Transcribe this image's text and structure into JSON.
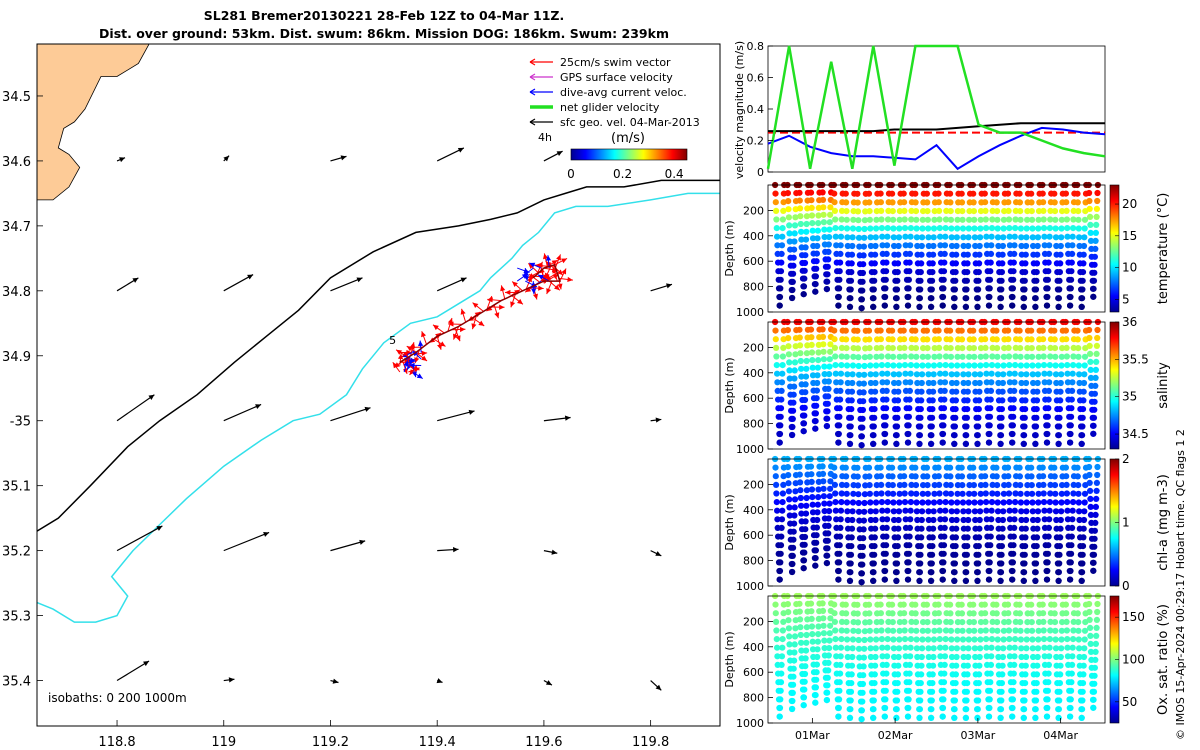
{
  "title_line1": "SL281 Bremer20130221 28-Feb 12Z to 04-Mar 11Z.",
  "title_line2": "Dist. over ground: 53km. Dist. swum: 86km. Mission DOG: 186km. Swum: 239km",
  "copyright": "© IMOS 15-Apr-2024 00:29:17 Hobart time. QC flags 1  2",
  "colors": {
    "land": "#fdcb97",
    "isobath_200": "#000000",
    "isobath_1000": "#33e0ea",
    "swim": "#ff0000",
    "gps": "#cc33cc",
    "current": "#0000ff",
    "net": "#22e022",
    "geo": "#000000"
  },
  "chart_data": [
    {
      "type": "map",
      "name": "track-map",
      "xlim": [
        118.65,
        119.93
      ],
      "ylim": [
        -35.47,
        -34.42
      ],
      "x_ticks": [
        118.8,
        119,
        119.2,
        119.4,
        119.6,
        119.8
      ],
      "x_tick_labels": [
        "118.8",
        "119",
        "119.2",
        "119.4",
        "119.6",
        "119.8"
      ],
      "y_ticks": [
        -34.5,
        -34.6,
        -34.7,
        -34.8,
        -34.9,
        -35,
        -35.1,
        -35.2,
        -35.3,
        -35.4
      ],
      "y_tick_labels": [
        "34.5",
        "34.6",
        "34.7",
        "34.8",
        "34.9",
        "-35",
        "35.1",
        "35.2",
        "35.3",
        "35.4"
      ],
      "legend": [
        {
          "label": "25cm/s swim vector",
          "color": "#ff0000"
        },
        {
          "label": "GPS surface velocity",
          "color": "#cc33cc"
        },
        {
          "label": "dive-avg current veloc.",
          "color": "#0000ff"
        },
        {
          "label": "net glider velocity",
          "color": "#22e022"
        },
        {
          "label": "sfc geo. vel. 04-Mar-2013",
          "color": "#000000"
        }
      ],
      "legend_note": "4h",
      "colorbar_label": "(m/s)",
      "colorbar_ticks": [
        0,
        0.2,
        0.4
      ],
      "colorbar_tick_labels": [
        "0",
        "0.2",
        "0.4"
      ],
      "colorbar_range": [
        0,
        0.45
      ],
      "isobaths_label": "isobaths: 0   200  1000m",
      "track_label": "5",
      "coastline": [
        [
          118.65,
          -34.42
        ],
        [
          118.86,
          -34.42
        ],
        [
          118.84,
          -34.45
        ],
        [
          118.8,
          -34.47
        ],
        [
          118.77,
          -34.47
        ],
        [
          118.74,
          -34.52
        ],
        [
          118.72,
          -34.54
        ],
        [
          118.7,
          -34.55
        ],
        [
          118.69,
          -34.58
        ],
        [
          118.71,
          -34.59
        ],
        [
          118.73,
          -34.61
        ],
        [
          118.71,
          -34.64
        ],
        [
          118.68,
          -34.66
        ],
        [
          118.65,
          -34.66
        ]
      ],
      "isobath_200": [
        [
          118.65,
          -35.17
        ],
        [
          118.69,
          -35.15
        ],
        [
          118.75,
          -35.1
        ],
        [
          118.82,
          -35.04
        ],
        [
          118.88,
          -35.0
        ],
        [
          118.95,
          -34.96
        ],
        [
          119.02,
          -34.91
        ],
        [
          119.08,
          -34.87
        ],
        [
          119.14,
          -34.83
        ],
        [
          119.2,
          -34.78
        ],
        [
          119.28,
          -34.74
        ],
        [
          119.36,
          -34.71
        ],
        [
          119.44,
          -34.7
        ],
        [
          119.5,
          -34.69
        ],
        [
          119.55,
          -34.68
        ],
        [
          119.6,
          -34.66
        ],
        [
          119.64,
          -34.65
        ],
        [
          119.68,
          -34.64
        ],
        [
          119.75,
          -34.64
        ],
        [
          119.82,
          -34.63
        ],
        [
          119.89,
          -34.63
        ],
        [
          119.93,
          -34.63
        ]
      ],
      "isobath_1000": [
        [
          118.65,
          -35.28
        ],
        [
          118.68,
          -35.29
        ],
        [
          118.72,
          -35.31
        ],
        [
          118.76,
          -35.31
        ],
        [
          118.8,
          -35.3
        ],
        [
          118.82,
          -35.27
        ],
        [
          118.79,
          -35.24
        ],
        [
          118.83,
          -35.2
        ],
        [
          118.88,
          -35.16
        ],
        [
          118.93,
          -35.12
        ],
        [
          119.0,
          -35.07
        ],
        [
          119.07,
          -35.03
        ],
        [
          119.13,
          -35.0
        ],
        [
          119.18,
          -34.99
        ],
        [
          119.23,
          -34.96
        ],
        [
          119.26,
          -34.92
        ],
        [
          119.3,
          -34.88
        ],
        [
          119.35,
          -34.85
        ],
        [
          119.4,
          -34.84
        ],
        [
          119.44,
          -34.82
        ],
        [
          119.48,
          -34.8
        ],
        [
          119.5,
          -34.78
        ],
        [
          119.54,
          -34.75
        ],
        [
          119.56,
          -34.73
        ],
        [
          119.59,
          -34.71
        ],
        [
          119.62,
          -34.68
        ],
        [
          119.66,
          -34.67
        ],
        [
          119.72,
          -34.67
        ],
        [
          119.8,
          -34.66
        ],
        [
          119.87,
          -34.65
        ],
        [
          119.93,
          -34.65
        ]
      ],
      "geo_vectors": [
        {
          "lon": 118.8,
          "lat": -34.6,
          "u": 0.015,
          "v": 0.005
        },
        {
          "lon": 119.0,
          "lat": -34.6,
          "u": 0.01,
          "v": 0.008
        },
        {
          "lon": 119.2,
          "lat": -34.6,
          "u": 0.03,
          "v": 0.007
        },
        {
          "lon": 119.4,
          "lat": -34.6,
          "u": 0.05,
          "v": 0.02
        },
        {
          "lon": 119.6,
          "lat": -34.6,
          "u": 0.035,
          "v": 0.015
        },
        {
          "lon": 118.8,
          "lat": -34.8,
          "u": 0.04,
          "v": 0.02
        },
        {
          "lon": 119.0,
          "lat": -34.8,
          "u": 0.055,
          "v": 0.025
        },
        {
          "lon": 119.2,
          "lat": -34.8,
          "u": 0.06,
          "v": 0.02
        },
        {
          "lon": 119.4,
          "lat": -34.8,
          "u": 0.055,
          "v": 0.02
        },
        {
          "lon": 119.8,
          "lat": -34.8,
          "u": 0.04,
          "v": 0.01
        },
        {
          "lon": 118.8,
          "lat": -35.0,
          "u": 0.07,
          "v": 0.04
        },
        {
          "lon": 119.0,
          "lat": -35.0,
          "u": 0.07,
          "v": 0.025
        },
        {
          "lon": 119.2,
          "lat": -35.0,
          "u": 0.075,
          "v": 0.02
        },
        {
          "lon": 119.4,
          "lat": -35.0,
          "u": 0.07,
          "v": 0.015
        },
        {
          "lon": 119.6,
          "lat": -35.0,
          "u": 0.05,
          "v": 0.005
        },
        {
          "lon": 119.8,
          "lat": -35.0,
          "u": 0.02,
          "v": 0.002
        },
        {
          "lon": 118.8,
          "lat": -35.2,
          "u": 0.085,
          "v": 0.038
        },
        {
          "lon": 119.0,
          "lat": -35.2,
          "u": 0.085,
          "v": 0.028
        },
        {
          "lon": 119.2,
          "lat": -35.2,
          "u": 0.065,
          "v": 0.015
        },
        {
          "lon": 119.4,
          "lat": -35.2,
          "u": 0.04,
          "v": 0.002
        },
        {
          "lon": 119.6,
          "lat": -35.2,
          "u": 0.025,
          "v": -0.004
        },
        {
          "lon": 119.8,
          "lat": -35.2,
          "u": 0.02,
          "v": -0.008
        },
        {
          "lon": 118.8,
          "lat": -35.4,
          "u": 0.06,
          "v": 0.03
        },
        {
          "lon": 119.0,
          "lat": -35.4,
          "u": 0.02,
          "v": 0.002
        },
        {
          "lon": 119.2,
          "lat": -35.4,
          "u": 0.015,
          "v": -0.003
        },
        {
          "lon": 119.4,
          "lat": -35.4,
          "u": 0.01,
          "v": -0.003
        },
        {
          "lon": 119.6,
          "lat": -35.4,
          "u": 0.015,
          "v": -0.007
        },
        {
          "lon": 119.8,
          "lat": -35.4,
          "u": 0.02,
          "v": -0.015
        }
      ],
      "glider_track": [
        [
          119.33,
          -34.91
        ],
        [
          119.36,
          -34.895
        ],
        [
          119.4,
          -34.87
        ],
        [
          119.44,
          -34.855
        ],
        [
          119.48,
          -34.835
        ],
        [
          119.52,
          -34.815
        ],
        [
          119.56,
          -34.8
        ],
        [
          119.6,
          -34.785
        ],
        [
          119.63,
          -34.785
        ],
        [
          119.62,
          -34.76
        ],
        [
          119.6,
          -34.765
        ],
        [
          119.58,
          -34.78
        ]
      ]
    },
    {
      "type": "line",
      "name": "velocity-panel",
      "ylabel": "velocity magnitude (m/s)",
      "ylim": [
        0,
        0.8
      ],
      "y_ticks": [
        0,
        0.2,
        0.4,
        0.6,
        0.8
      ],
      "y_tick_labels": [
        "0",
        "0.2",
        "0.4",
        "0.6",
        "0.8"
      ],
      "xlim": [
        0,
        4.0
      ],
      "x": [
        0,
        0.25,
        0.5,
        0.75,
        1.0,
        1.25,
        1.5,
        1.75,
        2.0,
        2.25,
        2.5,
        2.75,
        3.0,
        3.25,
        3.5,
        3.75,
        4.0
      ],
      "series": [
        {
          "color": "#ff0000",
          "dashed": true,
          "values": [
            0.25,
            0.25,
            0.25,
            0.25,
            0.25,
            0.25,
            0.25,
            0.25,
            0.25,
            0.25,
            0.25,
            0.25,
            0.25,
            0.25,
            0.25,
            0.25,
            0.25
          ]
        },
        {
          "color": "#000000",
          "values": [
            0.26,
            0.26,
            0.26,
            0.26,
            0.26,
            0.26,
            0.27,
            0.27,
            0.27,
            0.28,
            0.29,
            0.3,
            0.31,
            0.31,
            0.31,
            0.31,
            0.31
          ]
        },
        {
          "color": "#0000ff",
          "values": [
            0.18,
            0.23,
            0.16,
            0.12,
            0.1,
            0.1,
            0.09,
            0.08,
            0.17,
            0.02,
            0.1,
            0.17,
            0.23,
            0.28,
            0.27,
            0.25,
            0.24
          ]
        },
        {
          "color": "#22e022",
          "values": [
            0.02,
            0.8,
            0.02,
            0.7,
            0.02,
            0.8,
            0.04,
            0.8,
            0.8,
            0.8,
            0.3,
            0.25,
            0.25,
            0.2,
            0.15,
            0.12,
            0.1
          ]
        }
      ]
    },
    {
      "type": "scatter",
      "name": "temperature-section",
      "variable": "temperature (°C)",
      "ylabel": "Depth (m)",
      "ylim": [
        1000,
        0
      ],
      "y_ticks": [
        200,
        400,
        600,
        800,
        1000
      ],
      "y_tick_labels": [
        "200",
        "400",
        "600",
        "800",
        "1000"
      ],
      "colorbar_ticks": [
        5,
        10,
        15,
        20
      ],
      "colorbar_tick_labels": [
        "5",
        "10",
        "15",
        "20"
      ],
      "colorbar_range": [
        3,
        23
      ],
      "surface_value": 23,
      "deep_value": 3
    },
    {
      "type": "scatter",
      "name": "salinity-section",
      "variable": "salinity",
      "ylabel": "Depth (m)",
      "ylim": [
        1000,
        0
      ],
      "y_ticks": [
        200,
        400,
        600,
        800,
        1000
      ],
      "y_tick_labels": [
        "200",
        "400",
        "600",
        "800",
        "1000"
      ],
      "colorbar_ticks": [
        34.5,
        35,
        35.5,
        36
      ],
      "colorbar_tick_labels": [
        "34.5",
        "35",
        "35.5",
        "36"
      ],
      "colorbar_range": [
        34.3,
        36
      ],
      "surface_value": 35.8,
      "deep_value": 34.4
    },
    {
      "type": "scatter",
      "name": "chla-section",
      "variable": "chl-a (mg m-3)",
      "ylabel": "Depth (m)",
      "ylim": [
        1000,
        0
      ],
      "y_ticks": [
        200,
        400,
        600,
        800,
        1000
      ],
      "y_tick_labels": [
        "200",
        "400",
        "600",
        "800",
        "1000"
      ],
      "colorbar_ticks": [
        0,
        1,
        2
      ],
      "colorbar_tick_labels": [
        "0",
        "1",
        "2"
      ],
      "colorbar_range": [
        0,
        2
      ],
      "surface_value": 0.6,
      "deep_value": 0.02
    },
    {
      "type": "scatter",
      "name": "oxygen-section",
      "variable": "Ox. sat. ratio (%)",
      "ylabel": "Depth (m)",
      "ylim": [
        1000,
        0
      ],
      "y_ticks": [
        200,
        400,
        600,
        800,
        1000
      ],
      "y_tick_labels": [
        "200",
        "400",
        "600",
        "800",
        "1000"
      ],
      "x_ticks": [
        0.5,
        1.5,
        2.5,
        3.5
      ],
      "x_tick_labels": [
        "01Mar",
        "02Mar",
        "03Mar",
        "04Mar"
      ],
      "colorbar_ticks": [
        50,
        100,
        150
      ],
      "colorbar_tick_labels": [
        "50",
        "100",
        "150"
      ],
      "colorbar_range": [
        25,
        175
      ],
      "surface_value": 105,
      "deep_value": 80
    }
  ],
  "dives": {
    "tmax": 4.0,
    "times": [
      0.05,
      0.2,
      0.34,
      0.48,
      0.62,
      0.76,
      0.9,
      1.04,
      1.18,
      1.32,
      1.46,
      1.6,
      1.74,
      1.88,
      2.02,
      2.16,
      2.3,
      2.44,
      2.58,
      2.72,
      2.86,
      3.0,
      3.14,
      3.28,
      3.42,
      3.56,
      3.7,
      3.84
    ],
    "depths": [
      950,
      890,
      860,
      840,
      820,
      950,
      960,
      970,
      960,
      950,
      960,
      950,
      960,
      960,
      950,
      960,
      960,
      960,
      950,
      960,
      950,
      960,
      960,
      950,
      960,
      950,
      960,
      880
    ]
  }
}
